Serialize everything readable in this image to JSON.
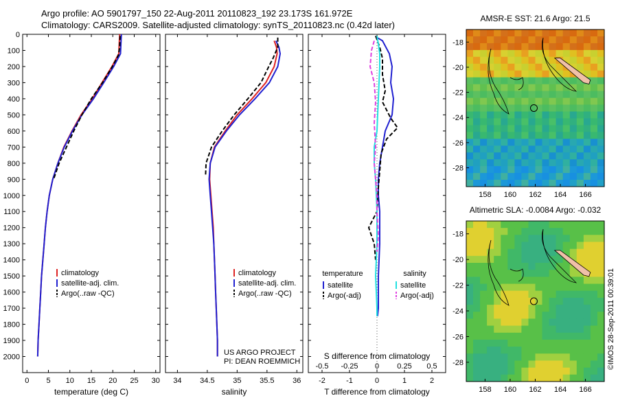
{
  "header": {
    "line1": "Argo profile: AO 5901797_150 22-Aug-2011 20110823_192 23.173S 161.972E",
    "line2": "Climatology: CARS2009. Satellite-adjusted climatology: synTS_20110823.nc (0.42d later)"
  },
  "colors": {
    "climatology": "#dd2222",
    "satellite": "#1f1fd0",
    "argo": "#000000",
    "sal_satellite": "#20e0e0",
    "sal_argo": "#e040e0"
  },
  "chart_data": [
    {
      "type": "line",
      "panel": "temperature",
      "xlabel": "temperature (deg C)",
      "ylabel": "",
      "xlim": [
        -1,
        31
      ],
      "ylim": [
        2100,
        0
      ],
      "xticks": [
        "0",
        "5",
        "10",
        "15",
        "20",
        "25",
        "30"
      ],
      "yticks": [
        "0",
        "100",
        "200",
        "300",
        "400",
        "500",
        "600",
        "700",
        "800",
        "900",
        "1000",
        "1100",
        "1200",
        "1300",
        "1400",
        "1500",
        "1600",
        "1700",
        "1800",
        "1900",
        "2000"
      ],
      "legend": [
        "climatology",
        "satellite-adj. clim.",
        "Argo(..raw -QC)"
      ],
      "series": [
        {
          "name": "climatology",
          "color": "#dd2222",
          "dash": "",
          "points": [
            [
              21.6,
              0
            ],
            [
              21.5,
              60
            ],
            [
              21.4,
              120
            ],
            [
              19.8,
              200
            ],
            [
              17.5,
              300
            ],
            [
              15.2,
              400
            ],
            [
              12.6,
              500
            ],
            [
              10.5,
              600
            ],
            [
              8.6,
              700
            ],
            [
              7.2,
              800
            ],
            [
              6.0,
              900
            ],
            [
              5.2,
              1000
            ],
            [
              4.7,
              1100
            ],
            [
              4.3,
              1200
            ],
            [
              4.0,
              1300
            ],
            [
              3.7,
              1400
            ],
            [
              3.4,
              1500
            ],
            [
              3.2,
              1600
            ],
            [
              3.0,
              1700
            ],
            [
              2.8,
              1800
            ],
            [
              2.6,
              1900
            ],
            [
              2.5,
              2000
            ]
          ]
        },
        {
          "name": "satellite-adj. clim.",
          "color": "#1f1fd0",
          "dash": "",
          "points": [
            [
              22.0,
              0
            ],
            [
              21.9,
              60
            ],
            [
              21.8,
              120
            ],
            [
              20.2,
              200
            ],
            [
              17.9,
              300
            ],
            [
              15.5,
              400
            ],
            [
              12.8,
              500
            ],
            [
              10.6,
              600
            ],
            [
              8.7,
              700
            ],
            [
              7.2,
              800
            ],
            [
              6.0,
              900
            ],
            [
              5.2,
              1000
            ],
            [
              4.7,
              1100
            ],
            [
              4.3,
              1200
            ],
            [
              4.0,
              1300
            ],
            [
              3.7,
              1400
            ],
            [
              3.4,
              1500
            ],
            [
              3.2,
              1600
            ],
            [
              3.0,
              1700
            ],
            [
              2.8,
              1800
            ],
            [
              2.6,
              1900
            ],
            [
              2.5,
              2000
            ]
          ]
        },
        {
          "name": "Argo(..raw -QC)",
          "color": "#000000",
          "dash": "6,3",
          "points": [
            [
              21.7,
              10
            ],
            [
              21.6,
              80
            ],
            [
              21.3,
              130
            ],
            [
              19.9,
              200
            ],
            [
              17.6,
              300
            ],
            [
              15.0,
              400
            ],
            [
              12.8,
              500
            ],
            [
              10.9,
              600
            ],
            [
              9.2,
              700
            ],
            [
              7.5,
              800
            ],
            [
              6.2,
              900
            ]
          ]
        }
      ]
    },
    {
      "type": "line",
      "panel": "salinity",
      "xlabel": "salinity",
      "ylabel": "",
      "xlim": [
        33.8,
        36.1
      ],
      "ylim": [
        2100,
        0
      ],
      "xticks": [
        "34",
        "34.5",
        "35",
        "35.5",
        "36"
      ],
      "legend": [
        "climatology",
        "satellite-adj. clim.",
        "Argo(..raw -QC)"
      ],
      "series": [
        {
          "name": "climatology",
          "color": "#dd2222",
          "dash": "",
          "points": [
            [
              35.62,
              40
            ],
            [
              35.66,
              80
            ],
            [
              35.67,
              120
            ],
            [
              35.62,
              200
            ],
            [
              35.48,
              300
            ],
            [
              35.25,
              400
            ],
            [
              35.0,
              500
            ],
            [
              34.8,
              600
            ],
            [
              34.62,
              700
            ],
            [
              34.55,
              800
            ],
            [
              34.54,
              900
            ],
            [
              34.56,
              1000
            ],
            [
              34.58,
              1100
            ],
            [
              34.6,
              1200
            ],
            [
              34.61,
              1300
            ],
            [
              34.62,
              1400
            ],
            [
              34.63,
              1500
            ],
            [
              34.64,
              1600
            ],
            [
              34.65,
              1700
            ],
            [
              34.66,
              1800
            ],
            [
              34.67,
              1900
            ],
            [
              34.67,
              2000
            ]
          ]
        },
        {
          "name": "satellite-adj. clim.",
          "color": "#1f1fd0",
          "dash": "",
          "points": [
            [
              35.65,
              40
            ],
            [
              35.7,
              80
            ],
            [
              35.72,
              120
            ],
            [
              35.68,
              200
            ],
            [
              35.54,
              300
            ],
            [
              35.3,
              400
            ],
            [
              35.04,
              500
            ],
            [
              34.82,
              600
            ],
            [
              34.63,
              700
            ],
            [
              34.55,
              800
            ],
            [
              34.53,
              900
            ],
            [
              34.55,
              1000
            ],
            [
              34.57,
              1100
            ],
            [
              34.59,
              1200
            ],
            [
              34.61,
              1300
            ],
            [
              34.62,
              1400
            ],
            [
              34.63,
              1500
            ],
            [
              34.64,
              1600
            ],
            [
              34.65,
              1700
            ],
            [
              34.66,
              1800
            ],
            [
              34.67,
              1900
            ],
            [
              34.67,
              2000
            ]
          ]
        },
        {
          "name": "Argo(..raw -QC)",
          "color": "#000000",
          "dash": "6,3",
          "points": [
            [
              35.68,
              20
            ],
            [
              35.68,
              80
            ],
            [
              35.6,
              150
            ],
            [
              35.53,
              200
            ],
            [
              35.4,
              300
            ],
            [
              35.18,
              400
            ],
            [
              34.95,
              500
            ],
            [
              34.75,
              600
            ],
            [
              34.57,
              700
            ],
            [
              34.48,
              800
            ],
            [
              34.47,
              880
            ]
          ]
        }
      ]
    },
    {
      "type": "line",
      "panel": "difference",
      "xlabel": "T difference from climatology",
      "xlabel_top": "S difference from climatology",
      "xlim": [
        -2.5,
        2.5
      ],
      "ylim": [
        2100,
        0
      ],
      "xticks": [
        "-2",
        "-1",
        "0",
        "1",
        "2"
      ],
      "sticks": [
        "-0.5",
        "-0.25",
        "0",
        "0.25",
        "0.5"
      ],
      "legend_titles": [
        "temperature",
        "salinity"
      ],
      "legend": [
        "satellite",
        "Argo(-adj)",
        "satellite",
        "Argo(-adj)"
      ],
      "series": [
        {
          "name": "satellite",
          "color": "#1f1fd0",
          "dash": "",
          "points": [
            [
              0.0,
              20
            ],
            [
              0.2,
              40
            ],
            [
              0.45,
              120
            ],
            [
              0.55,
              200
            ],
            [
              0.5,
              300
            ],
            [
              0.6,
              400
            ],
            [
              0.55,
              500
            ],
            [
              0.3,
              600
            ],
            [
              0.2,
              700
            ],
            [
              0.1,
              800
            ],
            [
              0.05,
              900
            ],
            [
              0.05,
              1000
            ],
            [
              0.1,
              1100
            ],
            [
              0.1,
              1300
            ],
            [
              0.05,
              1500
            ],
            [
              0.05,
              1700
            ],
            [
              0.02,
              1750
            ]
          ]
        },
        {
          "name": "Argo(-adj)",
          "color": "#000000",
          "dash": "6,3",
          "points": [
            [
              -0.05,
              10
            ],
            [
              0.1,
              80
            ],
            [
              0.2,
              150
            ],
            [
              0.2,
              250
            ],
            [
              0.3,
              350
            ],
            [
              0.2,
              420
            ],
            [
              0.5,
              520
            ],
            [
              0.75,
              580
            ],
            [
              0.35,
              650
            ],
            [
              0.15,
              740
            ],
            [
              0.1,
              850
            ],
            [
              0.05,
              950
            ],
            [
              0.0,
              1100
            ],
            [
              -0.3,
              1200
            ],
            [
              -0.1,
              1300
            ],
            [
              -0.05,
              1400
            ]
          ]
        },
        {
          "name": "satellite",
          "color": "#20e0e0",
          "dash": "",
          "points": [
            [
              0.0,
              10
            ],
            [
              0.05,
              60
            ],
            [
              0.1,
              120
            ],
            [
              0.1,
              200
            ],
            [
              0.05,
              400
            ],
            [
              0.0,
              600
            ],
            [
              -0.1,
              700
            ],
            [
              -0.1,
              800
            ],
            [
              -0.05,
              900
            ],
            [
              0.0,
              1100
            ],
            [
              0.0,
              1300
            ],
            [
              -0.05,
              1500
            ],
            [
              0.0,
              1700
            ],
            [
              0.0,
              1750
            ]
          ]
        },
        {
          "name": "Argo(-adj)",
          "color": "#e040e0",
          "dash": "6,3",
          "points": [
            [
              -0.1,
              40
            ],
            [
              -0.2,
              100
            ],
            [
              -0.25,
              200
            ],
            [
              -0.1,
              300
            ],
            [
              -0.05,
              420
            ],
            [
              -0.1,
              550
            ],
            [
              -0.05,
              700
            ],
            [
              -0.1,
              800
            ],
            [
              -0.05,
              900
            ],
            [
              0.0,
              1000
            ],
            [
              0.0,
              1100
            ],
            [
              0.05,
              1250
            ],
            [
              0.0,
              1350
            ]
          ]
        }
      ]
    }
  ],
  "maps": [
    {
      "title": "AMSR-E SST: 21.6 Argo: 21.5",
      "xticks": [
        "158",
        "160",
        "162",
        "164",
        "166"
      ],
      "yticks": [
        "-18",
        "-20",
        "-22",
        "-24",
        "-26",
        "-28"
      ]
    },
    {
      "title": "Altimetric SLA: -0.0084 Argo: -0.032",
      "xticks": [
        "158",
        "160",
        "162",
        "164",
        "166"
      ],
      "yticks": [
        "-18",
        "-20",
        "-22",
        "-24",
        "-26",
        "-28"
      ]
    }
  ],
  "annotations": {
    "project": "US ARGO PROJECT",
    "pi": "PI: DEAN ROEMMICH",
    "credit": "©IMOS 28-Sep-2011 00:39:01"
  }
}
